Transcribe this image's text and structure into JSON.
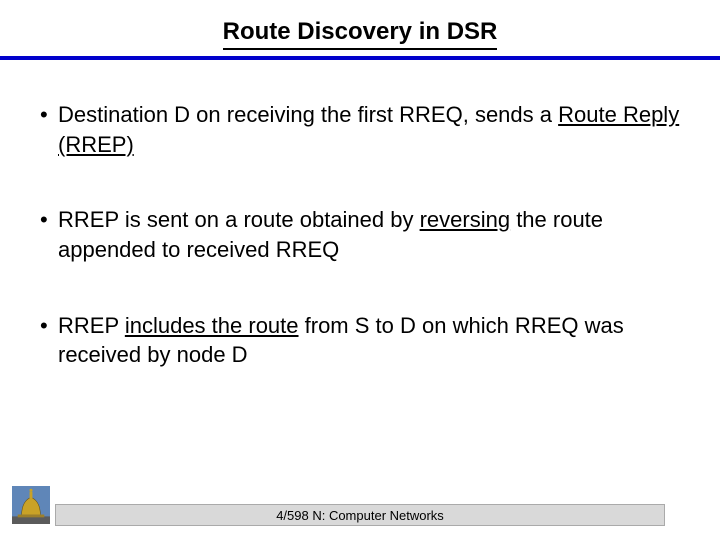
{
  "slide": {
    "title": "Route Discovery in DSR",
    "title_color": "#000000",
    "title_fontsize": 24,
    "rule_color": "#0000cc",
    "background_color": "#ffffff",
    "bullets": [
      {
        "segments": [
          {
            "text": "Destination D on receiving the first RREQ, sends a ",
            "underline": false
          },
          {
            "text": "Route Reply (RREP)",
            "underline": true
          }
        ]
      },
      {
        "segments": [
          {
            "text": "RREP is sent on a route obtained by ",
            "underline": false
          },
          {
            "text": "reversing",
            "underline": true
          },
          {
            "text": " the route appended to received RREQ",
            "underline": false
          }
        ]
      },
      {
        "segments": [
          {
            "text": "RREP ",
            "underline": false
          },
          {
            "text": "includes the route",
            "underline": true
          },
          {
            "text": " from S to D on which RREQ was received by node D",
            "underline": false
          }
        ]
      }
    ],
    "body_fontsize": 22,
    "body_color": "#000000",
    "bullet_marker": "•"
  },
  "footer": {
    "text": "4/598 N: Computer Networks",
    "bar_color": "#d9d9d9",
    "fontsize": 13
  },
  "logo": {
    "name": "dome-logo",
    "dome_fill": "#c9a227",
    "sky_fill": "#5f86b8",
    "base_fill": "#5b5b5b"
  }
}
